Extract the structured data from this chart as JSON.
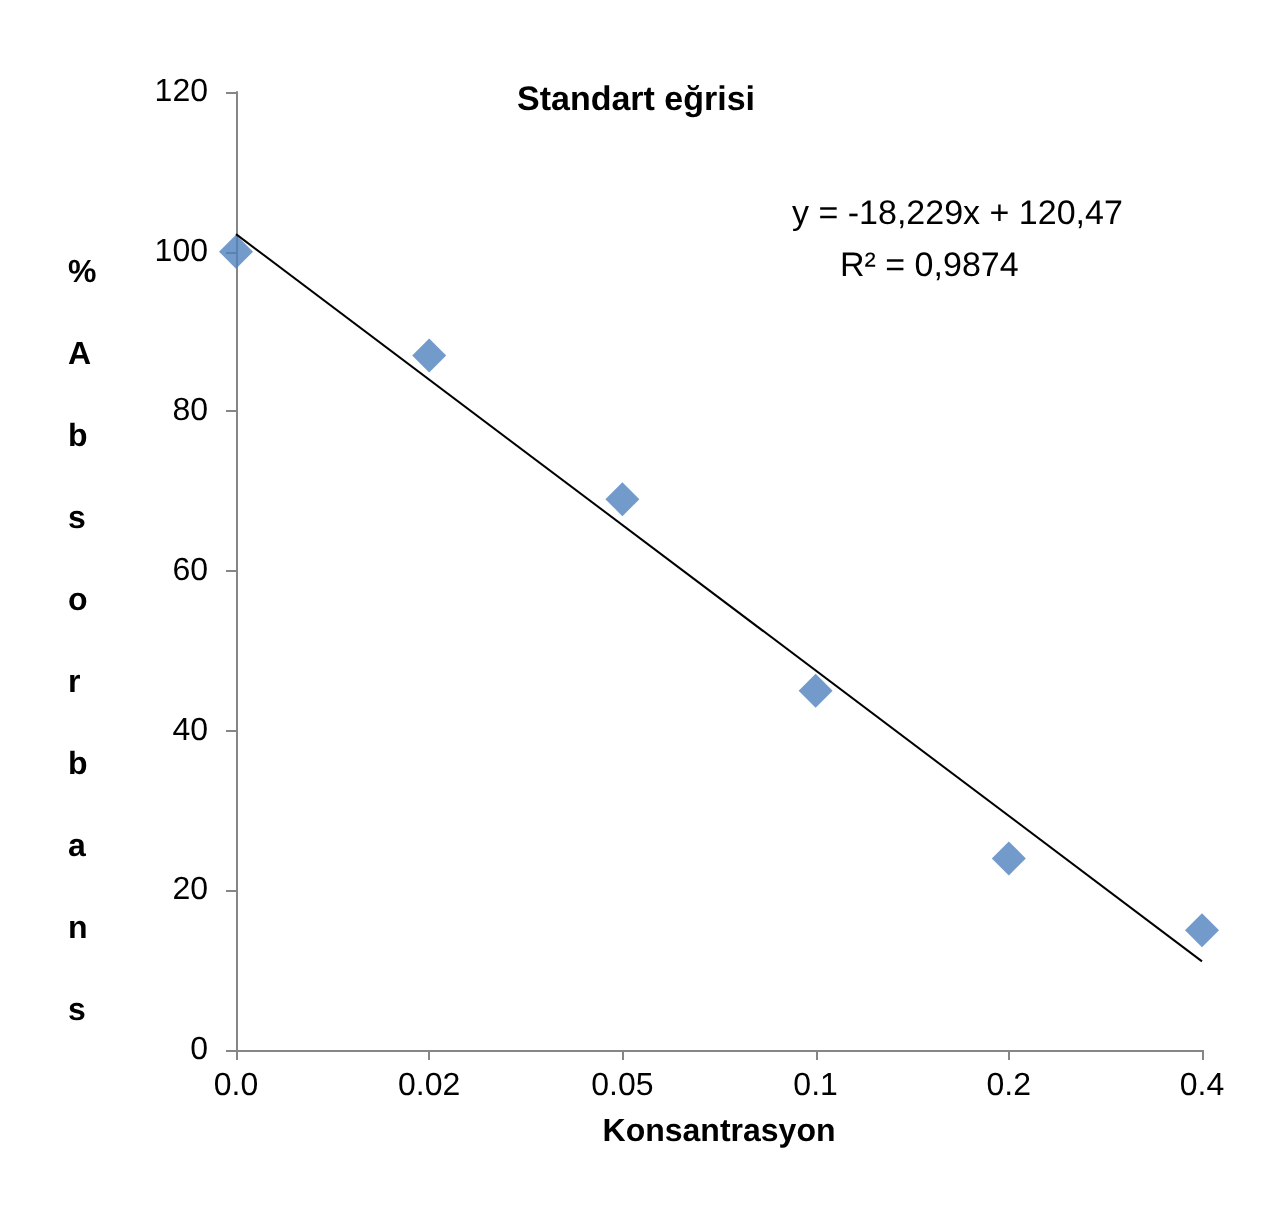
{
  "chart_data": {
    "type": "scatter",
    "title": "Standart eğrisi",
    "xlabel": "Konsantrasyon",
    "ylabel": "% Absorbans",
    "categories": [
      "0.0",
      "0.02",
      "0.05",
      "0.1",
      "0.2",
      "0.4"
    ],
    "series": [
      {
        "color": "#4f81bd",
        "marker": "diamond",
        "values": [
          100,
          87,
          69,
          45,
          24,
          15
        ]
      },
      {
        "type": "line",
        "color": "#000000",
        "marker": "none",
        "x": [
          "0.0",
          "0.4"
        ],
        "values": [
          102.2,
          11.1
        ]
      }
    ],
    "annotations": [
      "y = -18,229x + 120,47",
      "R² = 0,9874"
    ],
    "ylim": [
      0,
      120
    ],
    "yticks": [
      0,
      20,
      40,
      60,
      80,
      100,
      120
    ],
    "grid": false
  }
}
